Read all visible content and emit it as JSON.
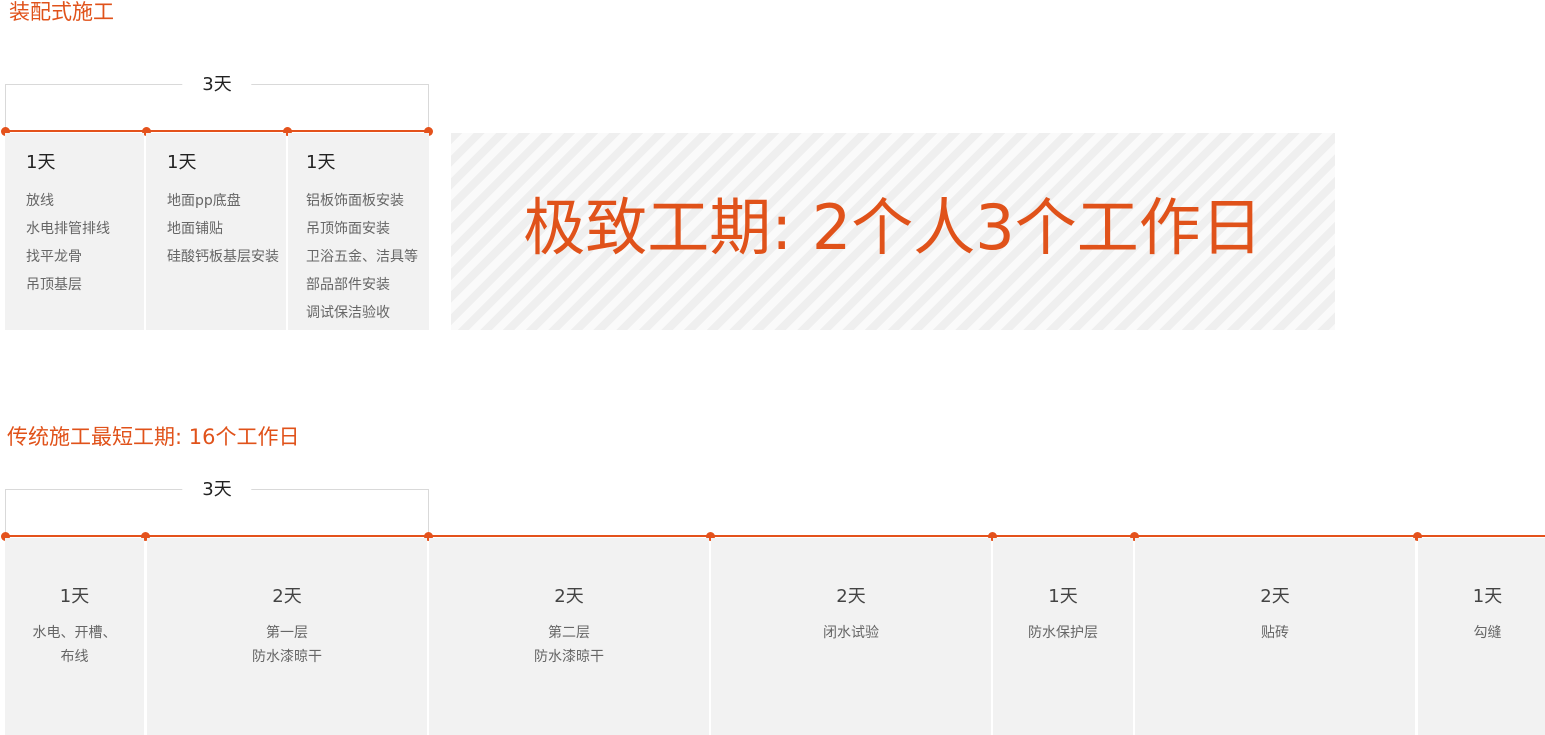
{
  "prefab": {
    "title": "装配式施工",
    "bracket_label": "3天",
    "columns": [
      {
        "days": "1天",
        "tasks": [
          "放线",
          "水电排管排线",
          "找平龙骨",
          "吊顶基层"
        ]
      },
      {
        "days": "1天",
        "tasks": [
          "地面pp底盘",
          "地面铺贴",
          "硅酸钙板基层安装"
        ]
      },
      {
        "days": "1天",
        "tasks": [
          "铝板饰面板安装",
          "吊顶饰面安装",
          "卫浴五金、洁具等",
          "部品部件安装",
          "调试保洁验收"
        ]
      }
    ],
    "highlight": "极致工期: 2个人3个工作日"
  },
  "traditional": {
    "title": "传统施工最短工期: 16个工作日",
    "bracket_label": "3天",
    "columns": [
      {
        "days": "1天",
        "tasks": [
          "水电、开槽、",
          "布线"
        ]
      },
      {
        "days": "2天",
        "tasks": [
          "第一层",
          "防水漆晾干"
        ]
      },
      {
        "days": "2天",
        "tasks": [
          "第二层",
          "防水漆晾干"
        ]
      },
      {
        "days": "2天",
        "tasks": [
          "闭水试验"
        ]
      },
      {
        "days": "1天",
        "tasks": [
          "防水保护层"
        ]
      },
      {
        "days": "2天",
        "tasks": [
          "贴砖"
        ]
      },
      {
        "days": "1天",
        "tasks": [
          "勾缝"
        ]
      }
    ]
  },
  "colors": {
    "accent": "#e4521c",
    "panel": "#f2f2f2",
    "muted_text": "#666666"
  }
}
